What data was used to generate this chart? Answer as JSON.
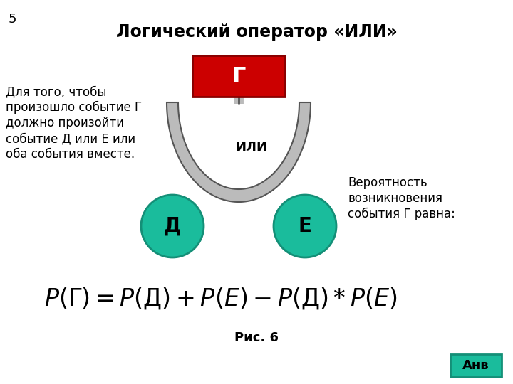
{
  "title": "Логический оператор «ИЛИ»",
  "slide_number": "5",
  "left_text": [
    "Для того, чтобы",
    "произошло событие Г",
    "должно произойти",
    "событие Д или Е или",
    "оба события вместе."
  ],
  "right_text": [
    "Вероятность",
    "возникновения",
    "события Г равна:"
  ],
  "top_box_label": "Г",
  "top_box_color": "#cc0000",
  "top_box_text_color": "#ffffff",
  "gate_label": "ИЛИ",
  "circle_left_label": "Д",
  "circle_right_label": "Е",
  "circle_color": "#1abc9c",
  "circle_edge_color": "#148f77",
  "circle_text_color": "#000000",
  "arch_fill_color": "#bbbbbb",
  "arch_edge_color": "#555555",
  "fig_caption": "Рис. 6",
  "anv_button_text": "Анв",
  "anv_button_color": "#1abc9c",
  "anv_button_edge_color": "#148f77",
  "anv_button_text_color": "#000000",
  "background_color": "#ffffff"
}
